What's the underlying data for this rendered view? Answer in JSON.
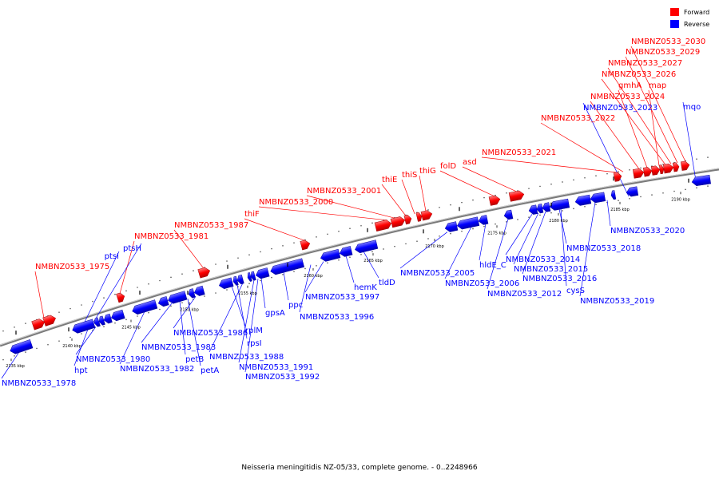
{
  "caption": "Neisseria meningitidis NZ-05/33, complete genome. - 0..2248966",
  "colors": {
    "forward": "#ff0000",
    "reverse": "#0000ff",
    "backbone": "#808080"
  },
  "legend": [
    {
      "label": "Forward",
      "color": "#ff0000"
    },
    {
      "label": "Reverse",
      "color": "#0000ff"
    }
  ],
  "ticks": [
    "2135 kbp",
    "2140 kbp",
    "2145 kbp",
    "2150 kbp",
    "2155 kbp",
    "2160 kbp",
    "2165 kbp",
    "2170 kbp",
    "2175 kbp",
    "2180 kbp",
    "2185 kbp",
    "2190 kbp"
  ],
  "forward_labels": [
    "NMBNZ0533_1975",
    "NMBNZ0533_1981",
    "NMBNZ0533_1987",
    "thiF",
    "NMBNZ0533_2000",
    "NMBNZ0533_2001",
    "thiE",
    "thiS",
    "thiG",
    "folD",
    "asd",
    "NMBNZ0533_2021",
    "NMBNZ0533_2022",
    "NMBNZ0533_2024",
    "gmhA",
    "map",
    "NMBNZ0533_2026",
    "NMBNZ0533_2027",
    "NMBNZ0533_2029",
    "NMBNZ0533_2030"
  ],
  "reverse_labels": [
    "ptsI",
    "ptsH",
    "NMBNZ0533_1978",
    "hpt",
    "NMBNZ0533_1980",
    "NMBNZ0533_1982",
    "NMBNZ0533_1983",
    "petB",
    "petA",
    "NMBNZ0533_1986",
    "rplM",
    "rpsI",
    "NMBNZ0533_1988",
    "NMBNZ0533_1991",
    "NMBNZ0533_1992",
    "gpsA",
    "ppc",
    "NMBNZ0533_1996",
    "NMBNZ0533_1997",
    "hemK",
    "tldD",
    "NMBNZ0533_2005",
    "NMBNZ0533_2006",
    "hldE_C",
    "NMBNZ0533_2012",
    "NMBNZ0533_2014",
    "NMBNZ0533_2015",
    "NMBNZ0533_2016",
    "cysS",
    "NMBNZ0533_2018",
    "NMBNZ0533_2019",
    "NMBNZ0533_2020",
    "NMBNZ0533_2023",
    "mqo"
  ]
}
